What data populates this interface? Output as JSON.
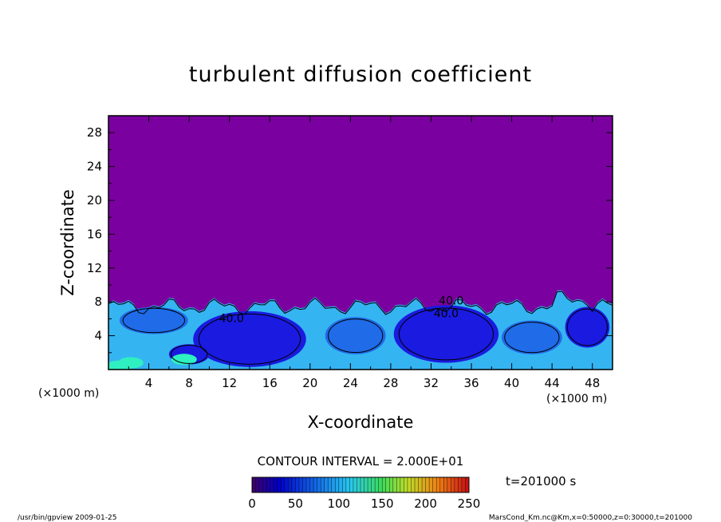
{
  "chart_data": {
    "type": "heatmap",
    "title": "turbulent diffusion coefficient",
    "xlabel": "X-coordinate",
    "ylabel": "Z-coordinate",
    "x_unit": "(×1000 m)",
    "y_unit": "(×1000 m)",
    "xlim": [
      0,
      50
    ],
    "ylim": [
      0,
      30
    ],
    "x_ticks": [
      "4",
      "8",
      "12",
      "16",
      "20",
      "24",
      "28",
      "32",
      "36",
      "40",
      "44",
      "48"
    ],
    "y_ticks": [
      "4",
      "8",
      "12",
      "16",
      "20",
      "24",
      "28"
    ],
    "contour_interval": "CONTOUR INTERVAL = 2.000E+01",
    "contour_labels": [
      {
        "text": "40.0",
        "x": 12.2,
        "y": 5.6
      },
      {
        "text": "40.0",
        "x": 34.0,
        "y": 7.7
      },
      {
        "text": "40.0",
        "x": 33.5,
        "y": 6.2
      }
    ],
    "time_label": "t=201000 s",
    "colorbar": {
      "min": 0,
      "max": 250,
      "ticks": [
        "0",
        "50",
        "100",
        "150",
        "200",
        "250"
      ]
    },
    "background_value_color": "#7b00a0",
    "footer_left": "/usr/bin/gpview  2009-01-25",
    "footer_right": "MarsCond_Km.nc@Km,x=0:50000,z=0:30000,t=201000",
    "colors": {
      "background_field": "#7b00a0",
      "low": "#1a1ae0",
      "mid": "#1f6be8",
      "high": "#35b4f2",
      "peak": "#2ef0c0",
      "contour": "#000000"
    }
  }
}
